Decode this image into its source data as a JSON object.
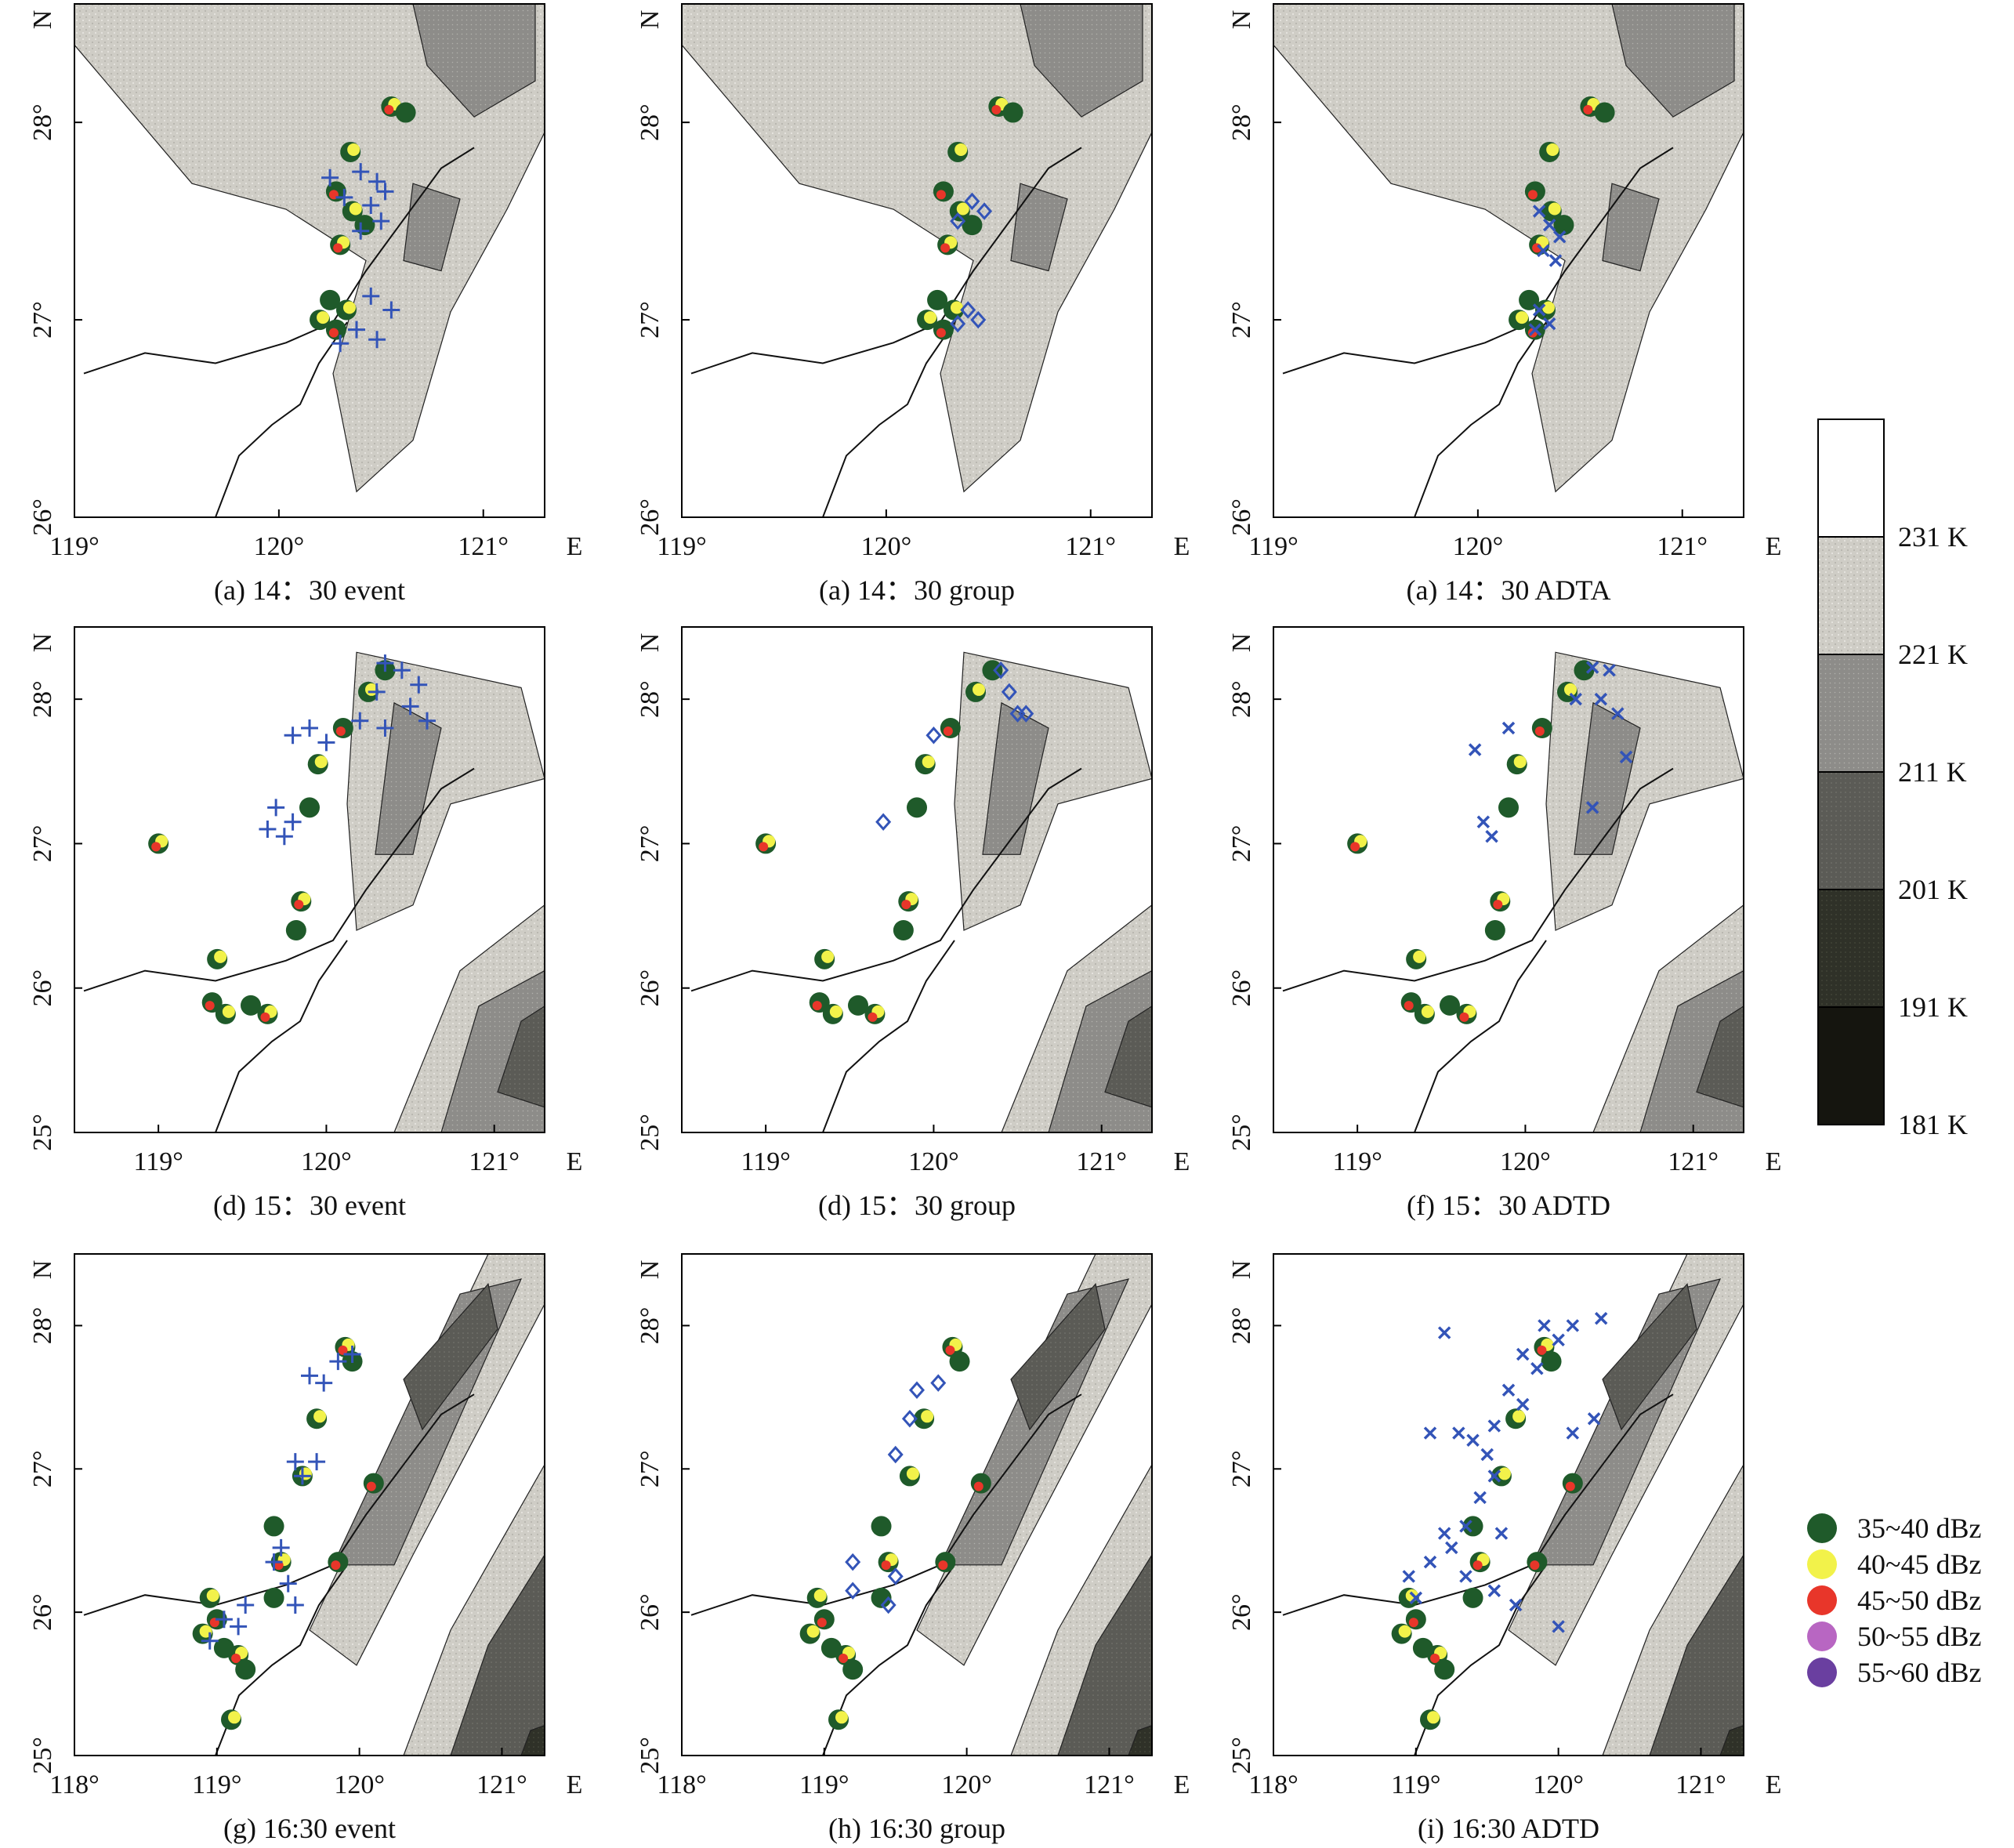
{
  "figure": {
    "panels": [
      {
        "id": "a1",
        "caption": "(a) 14：30 event",
        "marker": "plus",
        "x_ticks": [
          "119°",
          "120°",
          "121°"
        ],
        "x_unit": "E",
        "y_ticks": [
          "26°",
          "27°",
          "28°"
        ],
        "y_unit": "N"
      },
      {
        "id": "a2",
        "caption": "(a) 14：30 group",
        "marker": "diamond",
        "x_ticks": [
          "119°",
          "120°",
          "121°"
        ],
        "x_unit": "E",
        "y_ticks": [
          "26°",
          "27°",
          "28°"
        ],
        "y_unit": "N"
      },
      {
        "id": "a3",
        "caption": "(a) 14：30 ADTA",
        "marker": "cross",
        "x_ticks": [
          "119°",
          "120°",
          "121°"
        ],
        "x_unit": "E",
        "y_ticks": [
          "26°",
          "27°",
          "28°"
        ],
        "y_unit": "N"
      },
      {
        "id": "d1",
        "caption": "(d) 15：30 event",
        "marker": "plus",
        "x_ticks": [
          "119°",
          "120°",
          "121°"
        ],
        "x_unit": "E",
        "y_ticks": [
          "25°",
          "26°",
          "27°",
          "28°"
        ],
        "y_unit": "N"
      },
      {
        "id": "d2",
        "caption": "(d) 15：30 group",
        "marker": "diamond",
        "x_ticks": [
          "119°",
          "120°",
          "121°"
        ],
        "x_unit": "E",
        "y_ticks": [
          "25°",
          "26°",
          "27°",
          "28°"
        ],
        "y_unit": "N"
      },
      {
        "id": "f",
        "caption": "(f) 15：30 ADTD",
        "marker": "cross",
        "x_ticks": [
          "119°",
          "120°",
          "121°"
        ],
        "x_unit": "E",
        "y_ticks": [
          "25°",
          "26°",
          "27°",
          "28°"
        ],
        "y_unit": "N"
      },
      {
        "id": "g",
        "caption": "(g) 16:30 event",
        "marker": "plus",
        "x_ticks": [
          "118°",
          "119°",
          "120°",
          "121°"
        ],
        "x_unit": "E",
        "y_ticks": [
          "25°",
          "26°",
          "27°",
          "28°"
        ],
        "y_unit": "N"
      },
      {
        "id": "h",
        "caption": "(h) 16:30 group",
        "marker": "diamond",
        "x_ticks": [
          "118°",
          "119°",
          "120°",
          "121°"
        ],
        "x_unit": "E",
        "y_ticks": [
          "25°",
          "26°",
          "27°",
          "28°"
        ],
        "y_unit": "N"
      },
      {
        "id": "i",
        "caption": "(i) 16:30 ADTD",
        "marker": "cross",
        "x_ticks": [
          "118°",
          "119°",
          "120°",
          "121°"
        ],
        "x_unit": "E",
        "y_ticks": [
          "25°",
          "26°",
          "27°",
          "28°"
        ],
        "y_unit": "N"
      }
    ],
    "colorbar": {
      "labels": [
        "231 K",
        "221 K",
        "211 K",
        "201 K",
        "191 K",
        "181 K"
      ],
      "colors": [
        "#ffffff",
        "#cfcdc6",
        "#8d8c89",
        "#5b5b56",
        "#2f3128",
        "#15150f"
      ]
    },
    "legend": {
      "items": [
        {
          "label": "35~40 dBz",
          "color": "#1f5a2a"
        },
        {
          "label": "40~45 dBz",
          "color": "#f2f24a"
        },
        {
          "label": "45~50 dBz",
          "color": "#e8362a"
        },
        {
          "label": "50~55 dBz",
          "color": "#b866c2"
        },
        {
          "label": "55~60 dBz",
          "color": "#6a3fa0"
        }
      ]
    },
    "lightning_color": "#3354b8"
  },
  "chart_data": [
    {
      "type": "scatter",
      "panel": "a1",
      "title": "(a) 14：30 event",
      "xlim": [
        119,
        121.3
      ],
      "ylim": [
        26,
        28.6
      ],
      "radar": [
        [
          120.55,
          28.08
        ],
        [
          120.62,
          28.05
        ],
        [
          120.35,
          27.85
        ],
        [
          120.28,
          27.65
        ],
        [
          120.36,
          27.55
        ],
        [
          120.42,
          27.48
        ],
        [
          120.3,
          27.38
        ],
        [
          120.25,
          27.1
        ],
        [
          120.33,
          27.05
        ],
        [
          120.28,
          26.95
        ],
        [
          120.2,
          27.0
        ]
      ],
      "lightning": [
        [
          120.25,
          27.72
        ],
        [
          120.4,
          27.75
        ],
        [
          120.48,
          27.7
        ],
        [
          120.32,
          27.62
        ],
        [
          120.45,
          27.58
        ],
        [
          120.52,
          27.65
        ],
        [
          120.4,
          27.45
        ],
        [
          120.5,
          27.5
        ],
        [
          120.45,
          27.12
        ],
        [
          120.55,
          27.05
        ],
        [
          120.38,
          26.95
        ],
        [
          120.48,
          26.9
        ],
        [
          120.3,
          26.88
        ]
      ]
    },
    {
      "type": "scatter",
      "panel": "a2",
      "title": "(a) 14：30 group",
      "xlim": [
        119,
        121.3
      ],
      "ylim": [
        26,
        28.6
      ],
      "radar": [
        [
          120.55,
          28.08
        ],
        [
          120.62,
          28.05
        ],
        [
          120.35,
          27.85
        ],
        [
          120.28,
          27.65
        ],
        [
          120.36,
          27.55
        ],
        [
          120.42,
          27.48
        ],
        [
          120.3,
          27.38
        ],
        [
          120.25,
          27.1
        ],
        [
          120.33,
          27.05
        ],
        [
          120.28,
          26.95
        ],
        [
          120.2,
          27.0
        ]
      ],
      "lightning": [
        [
          120.42,
          27.6
        ],
        [
          120.48,
          27.55
        ],
        [
          120.35,
          27.5
        ],
        [
          120.4,
          27.05
        ],
        [
          120.45,
          27.0
        ],
        [
          120.35,
          26.98
        ]
      ]
    },
    {
      "type": "scatter",
      "panel": "a3",
      "title": "(a) 14：30 ADTA",
      "xlim": [
        119,
        121.3
      ],
      "ylim": [
        26,
        28.6
      ],
      "radar": [
        [
          120.55,
          28.08
        ],
        [
          120.62,
          28.05
        ],
        [
          120.35,
          27.85
        ],
        [
          120.28,
          27.65
        ],
        [
          120.36,
          27.55
        ],
        [
          120.42,
          27.48
        ],
        [
          120.3,
          27.38
        ],
        [
          120.25,
          27.1
        ],
        [
          120.33,
          27.05
        ],
        [
          120.28,
          26.95
        ],
        [
          120.2,
          27.0
        ]
      ],
      "lightning": [
        [
          120.3,
          27.55
        ],
        [
          120.35,
          27.48
        ],
        [
          120.4,
          27.42
        ],
        [
          120.32,
          27.35
        ],
        [
          120.38,
          27.3
        ],
        [
          120.3,
          27.05
        ],
        [
          120.35,
          26.98
        ],
        [
          120.28,
          26.95
        ]
      ]
    },
    {
      "type": "scatter",
      "panel": "d1",
      "title": "(d) 15：30 event",
      "xlim": [
        118.5,
        121.3
      ],
      "ylim": [
        25,
        28.5
      ],
      "radar": [
        [
          119.0,
          27.0
        ],
        [
          120.35,
          28.2
        ],
        [
          120.25,
          28.05
        ],
        [
          120.1,
          27.8
        ],
        [
          119.95,
          27.55
        ],
        [
          119.9,
          27.25
        ],
        [
          119.85,
          26.6
        ],
        [
          119.82,
          26.4
        ],
        [
          119.35,
          26.2
        ],
        [
          119.32,
          25.9
        ],
        [
          119.4,
          25.82
        ],
        [
          119.55,
          25.88
        ],
        [
          119.65,
          25.82
        ]
      ],
      "lightning": [
        [
          120.35,
          28.25
        ],
        [
          120.45,
          28.2
        ],
        [
          120.55,
          28.1
        ],
        [
          120.3,
          28.05
        ],
        [
          120.5,
          27.95
        ],
        [
          120.6,
          27.85
        ],
        [
          120.2,
          27.85
        ],
        [
          120.35,
          27.8
        ],
        [
          119.9,
          27.8
        ],
        [
          119.8,
          27.75
        ],
        [
          120.0,
          27.7
        ],
        [
          119.7,
          27.25
        ],
        [
          119.8,
          27.15
        ],
        [
          119.65,
          27.1
        ],
        [
          119.75,
          27.05
        ]
      ]
    },
    {
      "type": "scatter",
      "panel": "d2",
      "title": "(d) 15：30 group",
      "xlim": [
        118.5,
        121.3
      ],
      "ylim": [
        25,
        28.5
      ],
      "radar": [
        [
          119.0,
          27.0
        ],
        [
          120.35,
          28.2
        ],
        [
          120.25,
          28.05
        ],
        [
          120.1,
          27.8
        ],
        [
          119.95,
          27.55
        ],
        [
          119.9,
          27.25
        ],
        [
          119.85,
          26.6
        ],
        [
          119.82,
          26.4
        ],
        [
          119.35,
          26.2
        ],
        [
          119.32,
          25.9
        ],
        [
          119.4,
          25.82
        ],
        [
          119.55,
          25.88
        ],
        [
          119.65,
          25.82
        ]
      ],
      "lightning": [
        [
          120.4,
          28.2
        ],
        [
          120.45,
          28.05
        ],
        [
          120.5,
          27.9
        ],
        [
          120.55,
          27.9
        ],
        [
          120.0,
          27.75
        ],
        [
          119.7,
          27.15
        ]
      ]
    },
    {
      "type": "scatter",
      "panel": "f",
      "title": "(f) 15：30 ADTD",
      "xlim": [
        118.5,
        121.3
      ],
      "ylim": [
        25,
        28.5
      ],
      "radar": [
        [
          119.0,
          27.0
        ],
        [
          120.35,
          28.2
        ],
        [
          120.25,
          28.05
        ],
        [
          120.1,
          27.8
        ],
        [
          119.95,
          27.55
        ],
        [
          119.9,
          27.25
        ],
        [
          119.85,
          26.6
        ],
        [
          119.82,
          26.4
        ],
        [
          119.35,
          26.2
        ],
        [
          119.32,
          25.9
        ],
        [
          119.4,
          25.82
        ],
        [
          119.55,
          25.88
        ],
        [
          119.65,
          25.82
        ]
      ],
      "lightning": [
        [
          120.4,
          28.22
        ],
        [
          120.5,
          28.2
        ],
        [
          120.3,
          28.0
        ],
        [
          120.45,
          28.0
        ],
        [
          120.55,
          27.9
        ],
        [
          119.7,
          27.65
        ],
        [
          119.9,
          27.8
        ],
        [
          120.6,
          27.6
        ],
        [
          120.4,
          27.25
        ],
        [
          119.75,
          27.15
        ],
        [
          119.8,
          27.05
        ]
      ]
    },
    {
      "type": "scatter",
      "panel": "g",
      "title": "(g) 16:30 event",
      "xlim": [
        118,
        121.3
      ],
      "ylim": [
        25,
        28.5
      ],
      "radar": [
        [
          119.9,
          27.85
        ],
        [
          119.95,
          27.75
        ],
        [
          119.7,
          27.35
        ],
        [
          120.1,
          26.9
        ],
        [
          119.6,
          26.95
        ],
        [
          119.4,
          26.6
        ],
        [
          119.45,
          26.35
        ],
        [
          119.4,
          26.1
        ],
        [
          118.95,
          26.1
        ],
        [
          119.0,
          25.95
        ],
        [
          118.9,
          25.85
        ],
        [
          119.05,
          25.75
        ],
        [
          119.15,
          25.7
        ],
        [
          119.2,
          25.6
        ],
        [
          119.1,
          25.25
        ],
        [
          119.85,
          26.35
        ]
      ],
      "lightning": [
        [
          119.95,
          27.8
        ],
        [
          119.85,
          27.75
        ],
        [
          119.75,
          27.6
        ],
        [
          119.65,
          27.65
        ],
        [
          119.7,
          27.05
        ],
        [
          119.6,
          26.95
        ],
        [
          119.55,
          27.05
        ],
        [
          119.45,
          26.45
        ],
        [
          119.4,
          26.35
        ],
        [
          119.5,
          26.2
        ],
        [
          119.55,
          26.05
        ],
        [
          119.2,
          26.05
        ],
        [
          119.05,
          25.95
        ],
        [
          119.15,
          25.9
        ],
        [
          118.95,
          25.8
        ]
      ]
    },
    {
      "type": "scatter",
      "panel": "h",
      "title": "(h) 16:30 group",
      "xlim": [
        118,
        121.3
      ],
      "ylim": [
        25,
        28.5
      ],
      "radar": [
        [
          119.9,
          27.85
        ],
        [
          119.95,
          27.75
        ],
        [
          119.7,
          27.35
        ],
        [
          120.1,
          26.9
        ],
        [
          119.6,
          26.95
        ],
        [
          119.4,
          26.6
        ],
        [
          119.45,
          26.35
        ],
        [
          119.4,
          26.1
        ],
        [
          118.95,
          26.1
        ],
        [
          119.0,
          25.95
        ],
        [
          118.9,
          25.85
        ],
        [
          119.05,
          25.75
        ],
        [
          119.15,
          25.7
        ],
        [
          119.2,
          25.6
        ],
        [
          119.1,
          25.25
        ],
        [
          119.85,
          26.35
        ]
      ],
      "lightning": [
        [
          119.8,
          27.6
        ],
        [
          119.65,
          27.55
        ],
        [
          119.6,
          27.35
        ],
        [
          119.5,
          27.1
        ],
        [
          119.2,
          26.35
        ],
        [
          119.2,
          26.15
        ],
        [
          119.5,
          26.25
        ],
        [
          119.45,
          26.05
        ]
      ]
    },
    {
      "type": "scatter",
      "panel": "i",
      "title": "(i) 16:30 ADTD",
      "xlim": [
        118,
        121.3
      ],
      "ylim": [
        25,
        28.5
      ],
      "radar": [
        [
          119.9,
          27.85
        ],
        [
          119.95,
          27.75
        ],
        [
          119.7,
          27.35
        ],
        [
          120.1,
          26.9
        ],
        [
          119.6,
          26.95
        ],
        [
          119.4,
          26.6
        ],
        [
          119.45,
          26.35
        ],
        [
          119.4,
          26.1
        ],
        [
          118.95,
          26.1
        ],
        [
          119.0,
          25.95
        ],
        [
          118.9,
          25.85
        ],
        [
          119.05,
          25.75
        ],
        [
          119.15,
          25.7
        ],
        [
          119.2,
          25.6
        ],
        [
          119.1,
          25.25
        ],
        [
          119.85,
          26.35
        ]
      ],
      "lightning": [
        [
          119.2,
          27.95
        ],
        [
          119.9,
          28.0
        ],
        [
          120.0,
          27.9
        ],
        [
          120.1,
          28.0
        ],
        [
          120.3,
          28.05
        ],
        [
          119.75,
          27.8
        ],
        [
          119.85,
          27.7
        ],
        [
          119.65,
          27.55
        ],
        [
          119.75,
          27.45
        ],
        [
          119.55,
          27.3
        ],
        [
          119.4,
          27.2
        ],
        [
          119.3,
          27.25
        ],
        [
          119.1,
          27.25
        ],
        [
          119.5,
          27.1
        ],
        [
          120.1,
          27.25
        ],
        [
          120.25,
          27.35
        ],
        [
          119.55,
          26.95
        ],
        [
          119.45,
          26.8
        ],
        [
          119.35,
          26.6
        ],
        [
          119.25,
          26.45
        ],
        [
          119.1,
          26.35
        ],
        [
          118.95,
          26.25
        ],
        [
          119.0,
          26.1
        ],
        [
          119.35,
          26.25
        ],
        [
          119.55,
          26.15
        ],
        [
          119.7,
          26.05
        ],
        [
          120.0,
          25.9
        ],
        [
          119.2,
          26.55
        ],
        [
          119.6,
          26.55
        ]
      ]
    }
  ]
}
